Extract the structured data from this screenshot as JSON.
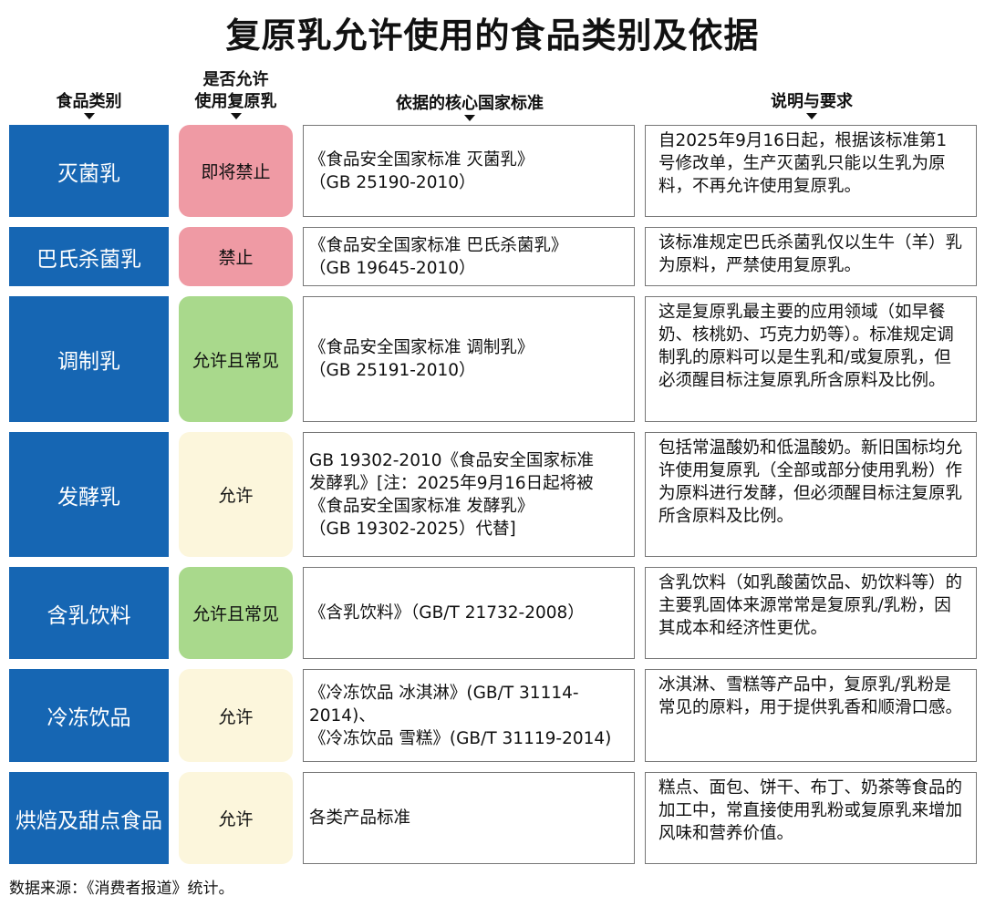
{
  "title": "复原乳允许使用的食品类别及依据",
  "headers": {
    "category": "食品类别",
    "allowed": "是否允许\n使用复原乳",
    "standard": "依据的核心国家标准",
    "description": "说明与要求"
  },
  "colors": {
    "category_bg": "#1666b3",
    "禁止": "#ef9aa4",
    "常见": "#a9d98c",
    "允许": "#fcf6dc"
  },
  "rows": [
    {
      "category": "灭菌乳",
      "allowed": "即将禁止",
      "status": "禁止",
      "standard": "《食品安全国家标准 灭菌乳》\n（GB 25190-2010）",
      "description": "自2025年9月16日起，根据该标准第1号修改单，生产灭菌乳只能以生乳为原料，不再允许使用复原乳。"
    },
    {
      "category": "巴氏杀菌乳",
      "allowed": "禁止",
      "status": "禁止",
      "standard": "《食品安全国家标准 巴氏杀菌乳》\n（GB 19645-2010）",
      "description": "该标准规定巴氏杀菌乳仅以生牛（羊）乳为原料，严禁使用复原乳。"
    },
    {
      "category": "调制乳",
      "allowed": "允许且常见",
      "status": "常见",
      "standard": "《食品安全国家标准 调制乳》\n（GB 25191-2010）",
      "description": "这是复原乳最主要的应用领域（如早餐奶、核桃奶、巧克力奶等）。标准规定调制乳的原料可以是生乳和/或复原乳，但必须醒目标注复原乳所含原料及比例。"
    },
    {
      "category": "发酵乳",
      "allowed": "允许",
      "status": "允许",
      "standard": "GB 19302-2010《食品安全国家标准\n发酵乳》[注：2025年9月16日起将被\n《食品安全国家标准 发酵乳》\n（GB 19302-2025）代替]",
      "description": "包括常温酸奶和低温酸奶。新旧国标均允许使用复原乳（全部或部分使用乳粉）作为原料进行发酵，但必须醒目标注复原乳所含原料及比例。"
    },
    {
      "category": "含乳饮料",
      "allowed": "允许且常见",
      "status": "常见",
      "standard": "《含乳饮料》（GB/T 21732-2008）",
      "description": "含乳饮料（如乳酸菌饮品、奶饮料等）的主要乳固体来源常常是复原乳/乳粉，因其成本和经济性更优。"
    },
    {
      "category": "冷冻饮品",
      "allowed": "允许",
      "status": "允许",
      "standard": "《冷冻饮品 冰淇淋》(GB/T 31114-2014)、\n《冷冻饮品 雪糕》(GB/T 31119-2014)",
      "description": "冰淇淋、雪糕等产品中，复原乳/乳粉是常见的原料，用于提供乳香和顺滑口感。"
    },
    {
      "category": "烘焙及甜点食品",
      "allowed": "允许",
      "status": "允许",
      "standard": "各类产品标准",
      "description": "糕点、面包、饼干、布丁、奶茶等食品的加工中，常直接使用乳粉或复原乳来增加风味和营养价值。"
    }
  ],
  "source": "数据来源：《消费者报道》统计。"
}
